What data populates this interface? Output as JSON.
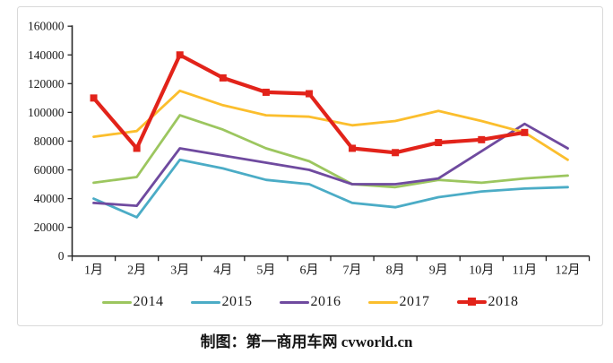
{
  "chart_data": {
    "type": "line",
    "title": "",
    "xlabel": "",
    "ylabel": "",
    "grid": false,
    "legend_position": "bottom",
    "categories": [
      "1月",
      "2月",
      "3月",
      "4月",
      "5月",
      "6月",
      "7月",
      "8月",
      "9月",
      "10月",
      "11月",
      "12月"
    ],
    "y_axis": {
      "min": 0,
      "max": 160000,
      "step": 20000
    },
    "series": [
      {
        "name": "2014",
        "color": "#9CC65F",
        "line_width": 2.8,
        "marker": "none",
        "values": [
          51000,
          55000,
          98000,
          88000,
          75000,
          66000,
          50000,
          48000,
          53000,
          51000,
          54000,
          56000
        ]
      },
      {
        "name": "2015",
        "color": "#4BACC6",
        "line_width": 2.8,
        "marker": "none",
        "values": [
          40000,
          27000,
          67000,
          61000,
          53000,
          50000,
          37000,
          34000,
          41000,
          45000,
          47000,
          48000
        ]
      },
      {
        "name": "2016",
        "color": "#6F4A9F",
        "line_width": 2.8,
        "marker": "none",
        "values": [
          37000,
          35000,
          75000,
          70000,
          65000,
          60000,
          50000,
          50000,
          54000,
          73000,
          92000,
          75000
        ]
      },
      {
        "name": "2017",
        "color": "#FBBE2D",
        "line_width": 2.8,
        "marker": "none",
        "values": [
          83000,
          87000,
          115000,
          105000,
          98000,
          97000,
          91000,
          94000,
          101000,
          94000,
          86000,
          67000
        ]
      },
      {
        "name": "2018",
        "color": "#E2231A",
        "line_width": 4.2,
        "marker": "square",
        "values": [
          110000,
          75000,
          140000,
          124000,
          114000,
          113000,
          75000,
          72000,
          79000,
          81000,
          86000
        ]
      }
    ]
  },
  "caption": {
    "text": "制图：第一商用车网 cvworld.cn"
  }
}
